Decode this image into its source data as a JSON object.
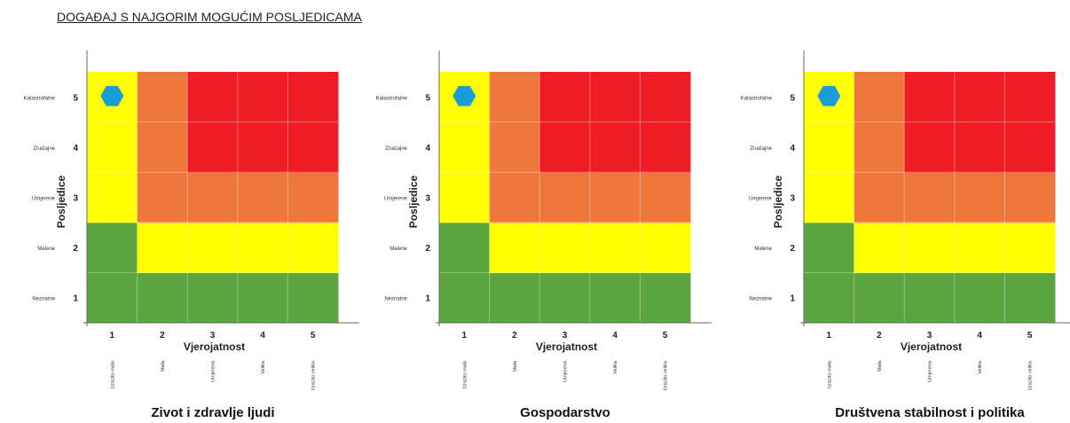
{
  "title": "DOGAĐAJ S NAJGORIM MOGUĆIM POSLJEDICAMA",
  "colors": {
    "green": "#5aa53d",
    "yellow": "#ffff00",
    "orange": "#f0773b",
    "red": "#ee1c24",
    "marker": "#1a9cd8"
  },
  "chart_data": [
    {
      "type": "heatmap",
      "title": "Zivot i zdravlje ljudi",
      "xlabel": "Vjerojatnost",
      "ylabel": "Posljedice",
      "x_ticks": [
        "1",
        "2",
        "3",
        "4",
        "5"
      ],
      "x_categories": [
        "Izrazito mala",
        "Mala",
        "Umjerena",
        "Velika",
        "Izrazito velika"
      ],
      "y_ticks": [
        "1",
        "2",
        "3",
        "4",
        "5"
      ],
      "y_categories": [
        "Neznatne",
        "Malene",
        "Umjerene",
        "Značajne",
        "Katastrofalne"
      ],
      "cell_colors": [
        [
          "green",
          "green",
          "green",
          "green",
          "green"
        ],
        [
          "green",
          "yellow",
          "yellow",
          "yellow",
          "yellow"
        ],
        [
          "yellow",
          "orange",
          "orange",
          "orange",
          "orange"
        ],
        [
          "yellow",
          "orange",
          "red",
          "red",
          "red"
        ],
        [
          "yellow",
          "orange",
          "red",
          "red",
          "red"
        ]
      ],
      "marker": {
        "x": 1,
        "y": 5,
        "shape": "hexagon"
      }
    },
    {
      "type": "heatmap",
      "title": "Gospodarstvo",
      "xlabel": "Vjerojatnost",
      "ylabel": "Posljedice",
      "x_ticks": [
        "1",
        "2",
        "3",
        "4",
        "5"
      ],
      "x_categories": [
        "Izrazito mala",
        "Mala",
        "Umjerena",
        "Velika",
        "Izrazito velika"
      ],
      "y_ticks": [
        "1",
        "2",
        "3",
        "4",
        "5"
      ],
      "y_categories": [
        "Neznatne",
        "Malene",
        "Umjerene",
        "Značajne",
        "Katastrofalne"
      ],
      "cell_colors": [
        [
          "green",
          "green",
          "green",
          "green",
          "green"
        ],
        [
          "green",
          "yellow",
          "yellow",
          "yellow",
          "yellow"
        ],
        [
          "yellow",
          "orange",
          "orange",
          "orange",
          "orange"
        ],
        [
          "yellow",
          "orange",
          "red",
          "red",
          "red"
        ],
        [
          "yellow",
          "orange",
          "red",
          "red",
          "red"
        ]
      ],
      "marker": {
        "x": 1,
        "y": 5,
        "shape": "hexagon"
      }
    },
    {
      "type": "heatmap",
      "title": "Društvena stabilnost i politika",
      "xlabel": "Vjerojatnost",
      "ylabel": "Posljedice",
      "x_ticks": [
        "1",
        "2",
        "3",
        "4",
        "5"
      ],
      "x_categories": [
        "Izrazito mala",
        "Mala",
        "Umjerena",
        "Velika",
        "Izrazito velika"
      ],
      "y_ticks": [
        "1",
        "2",
        "3",
        "4",
        "5"
      ],
      "y_categories": [
        "Neznatne",
        "Malene",
        "Umjerene",
        "Značajne",
        "Katastrofalne"
      ],
      "cell_colors": [
        [
          "green",
          "green",
          "green",
          "green",
          "green"
        ],
        [
          "green",
          "yellow",
          "yellow",
          "yellow",
          "yellow"
        ],
        [
          "yellow",
          "orange",
          "orange",
          "orange",
          "orange"
        ],
        [
          "yellow",
          "orange",
          "red",
          "red",
          "red"
        ],
        [
          "yellow",
          "orange",
          "red",
          "red",
          "red"
        ]
      ],
      "marker": {
        "x": 1,
        "y": 5,
        "shape": "hexagon"
      }
    }
  ]
}
